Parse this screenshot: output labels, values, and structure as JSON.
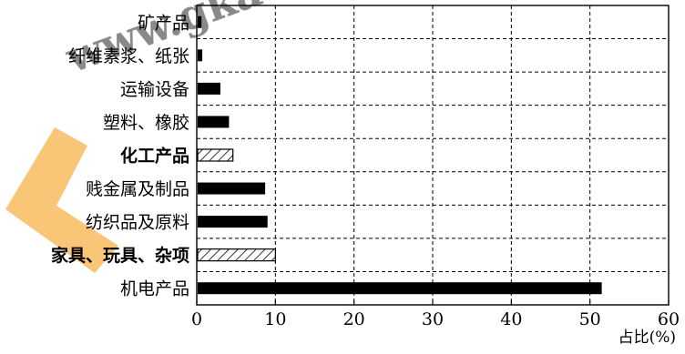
{
  "chart_data": {
    "type": "bar",
    "orientation": "horizontal",
    "categories": [
      "矿产品",
      "纤维素浆、纸张",
      "运输设备",
      "塑料、橡胶",
      "化工产品",
      "贱金属及制品",
      "纺织品及原料",
      "家具、玩具、杂项",
      "机电产品"
    ],
    "highlighted": [
      false,
      false,
      false,
      false,
      true,
      false,
      false,
      true,
      false
    ],
    "values": [
      0.6,
      0.7,
      3.0,
      4.1,
      4.6,
      8.7,
      9.0,
      10.0,
      51.5
    ],
    "xlim": [
      0,
      60
    ],
    "xticks": [
      0,
      10,
      20,
      30,
      40,
      50,
      60
    ],
    "xticklabels": [
      "0",
      "10",
      "20",
      "30",
      "40",
      "50",
      "60"
    ],
    "xlabel": "占比(%)",
    "grid": "dashed",
    "bar_color": "#000000",
    "highlight_style": "hatched"
  },
  "watermark": {
    "text": "www.gkaozx.com",
    "color": "#1aa3f0",
    "accent_color": "#f6b24b"
  }
}
